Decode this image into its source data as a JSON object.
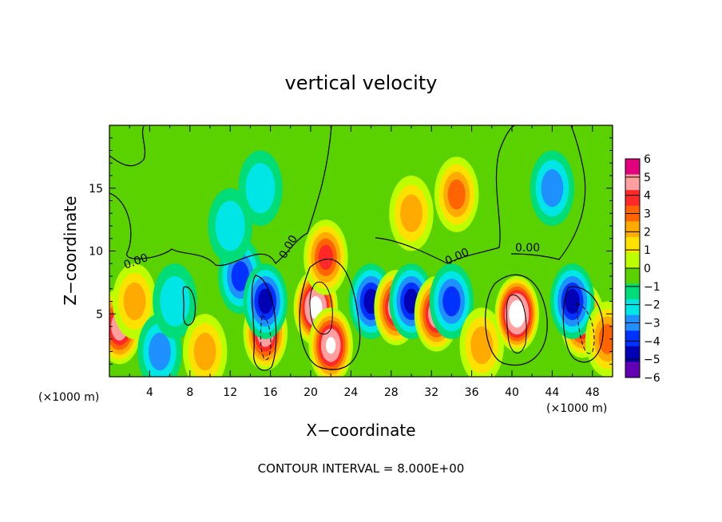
{
  "chart_data": {
    "type": "heatmap",
    "title": "vertical velocity",
    "xlabel": "X−coordinate",
    "ylabel": "Z−coordinate",
    "x_unit_left": "(×1000 m)",
    "x_unit_right": "(×1000 m)",
    "xlim": [
      0,
      50
    ],
    "ylim": [
      0,
      20
    ],
    "x_ticks": [
      4,
      8,
      12,
      16,
      20,
      24,
      28,
      32,
      36,
      40,
      44,
      48
    ],
    "y_ticks": [
      5,
      10,
      15
    ],
    "contour_interval_text": "CONTOUR INTERVAL = 8.000E+00",
    "contour_labels": [
      "0.00",
      "0.00",
      "0.00",
      "0.00"
    ],
    "colorbar": {
      "min": -6,
      "max": 6,
      "ticks": [
        6,
        5,
        4,
        3,
        2,
        1,
        0,
        -1,
        -2,
        -3,
        -4,
        -5,
        -6
      ],
      "tick_labels": [
        "6",
        "5",
        "4",
        "3",
        "2",
        "1",
        "0",
        "−1",
        "−2",
        "−3",
        "−4",
        "−5",
        "−6"
      ],
      "colors": [
        "#e1007e",
        "#ff9f9f",
        "#ff2828",
        "#ff6400",
        "#ffaa00",
        "#ffe100",
        "#beff00",
        "#5ad200",
        "#00dc78",
        "#00e6e6",
        "#1e90ff",
        "#0032ff",
        "#0000b4",
        "#6400b4"
      ]
    },
    "background_value": 0.3,
    "features": [
      {
        "x": 1.0,
        "z": 4.0,
        "value": 6.5
      },
      {
        "x": 2.5,
        "z": 6.0,
        "value": 3.0
      },
      {
        "x": 5.0,
        "z": 2.0,
        "value": -2.5
      },
      {
        "x": 6.5,
        "z": 6.0,
        "value": -1.5
      },
      {
        "x": 9.5,
        "z": 2.0,
        "value": 3.0
      },
      {
        "x": 13.0,
        "z": 8.0,
        "value": -3.5
      },
      {
        "x": 15.5,
        "z": 3.5,
        "value": 7.0
      },
      {
        "x": 15.5,
        "z": 6.0,
        "value": -4.5
      },
      {
        "x": 20.5,
        "z": 5.5,
        "value": 9.0
      },
      {
        "x": 22.0,
        "z": 2.5,
        "value": 8.0
      },
      {
        "x": 21.5,
        "z": 9.5,
        "value": 4.5
      },
      {
        "x": 26.0,
        "z": 6.0,
        "value": -5.0
      },
      {
        "x": 28.5,
        "z": 5.5,
        "value": 7.0
      },
      {
        "x": 30.0,
        "z": 6.0,
        "value": -5.0
      },
      {
        "x": 32.5,
        "z": 5.0,
        "value": 7.0
      },
      {
        "x": 34.0,
        "z": 6.0,
        "value": -4.0
      },
      {
        "x": 37.0,
        "z": 2.5,
        "value": 3.0
      },
      {
        "x": 30.0,
        "z": 13.0,
        "value": 3.0
      },
      {
        "x": 34.5,
        "z": 14.5,
        "value": 3.5
      },
      {
        "x": 40.5,
        "z": 5.0,
        "value": 10.0
      },
      {
        "x": 44.0,
        "z": 15.0,
        "value": -2.5
      },
      {
        "x": 47.0,
        "z": 4.5,
        "value": 7.0
      },
      {
        "x": 46.0,
        "z": 6.0,
        "value": -4.5
      },
      {
        "x": 49.5,
        "z": 3.0,
        "value": 4.0
      },
      {
        "x": 15.0,
        "z": 15.0,
        "value": -2.0
      },
      {
        "x": 12.0,
        "z": 12.0,
        "value": -1.5
      }
    ]
  }
}
